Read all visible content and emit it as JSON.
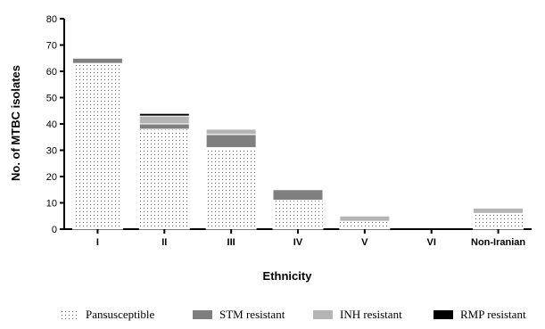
{
  "chart_data": {
    "type": "bar",
    "stacked": true,
    "categories": [
      "I",
      "II",
      "III",
      "IV",
      "V",
      "VI",
      "Non-Iranian"
    ],
    "series": [
      {
        "name": "Pansusceptible",
        "values": [
          63,
          38,
          31,
          11,
          3,
          0,
          6
        ],
        "color": "#ffffff",
        "pattern": "dots"
      },
      {
        "name": "STM resistant",
        "values": [
          2,
          2,
          5,
          4,
          0,
          0,
          0
        ],
        "color": "#7f7f7f"
      },
      {
        "name": "INH resistant",
        "values": [
          0,
          3,
          2,
          0,
          2,
          0,
          2
        ],
        "color": "#b4b4b4"
      },
      {
        "name": "RMP resistant",
        "values": [
          0,
          1,
          0,
          0,
          0,
          0,
          0
        ],
        "color": "#000000"
      }
    ],
    "xlabel": "Ethnicity",
    "ylabel": "No. of MTBC isolates",
    "ylim": [
      0,
      80
    ],
    "yticks": [
      0,
      10,
      20,
      30,
      40,
      50,
      60,
      70,
      80
    ],
    "grid": false,
    "legend_position": "bottom"
  }
}
